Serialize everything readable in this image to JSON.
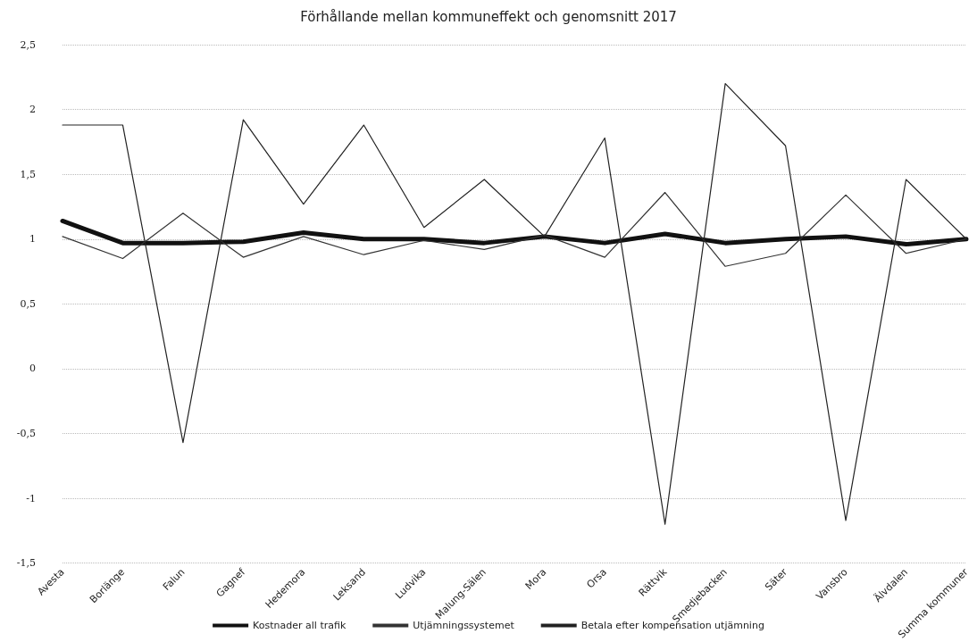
{
  "chart_data": {
    "type": "line",
    "title": "Förhållande mellan kommuneffekt och genomsnitt 2017",
    "categories": [
      "Avesta",
      "Borlänge",
      "Falun",
      "Gagnef",
      "Hedemora",
      "Leksand",
      "Ludvika",
      "Malung-Sälen",
      "Mora",
      "Orsa",
      "Rättvik",
      "Smedjebacken",
      "Säter",
      "Vansbro",
      "Älvdalen",
      "Summa kommuner"
    ],
    "series": [
      {
        "name": "Kostnader all trafik",
        "color": "#111111",
        "values": [
          1.14,
          0.97,
          0.97,
          0.98,
          1.05,
          1.0,
          1.0,
          0.97,
          1.02,
          0.97,
          1.04,
          0.97,
          1.0,
          1.02,
          0.96,
          1.0
        ]
      },
      {
        "name": "Utjämningssystemet",
        "color": "#333333",
        "values": [
          1.02,
          0.85,
          1.2,
          0.86,
          1.02,
          0.88,
          0.99,
          0.92,
          1.03,
          0.86,
          1.36,
          0.79,
          0.89,
          1.34,
          0.89,
          1.0
        ]
      },
      {
        "name": "Betala efter kompensation utjämning",
        "color": "#222222",
        "values": [
          1.88,
          1.88,
          -0.57,
          1.92,
          1.27,
          1.88,
          1.09,
          1.46,
          1.02,
          1.78,
          -1.2,
          2.2,
          1.72,
          -1.17,
          1.46,
          1.0
        ]
      }
    ],
    "ylim": [
      -1.5,
      2.5
    ],
    "yticks": [
      {
        "value": -1.5,
        "label": "-1,5"
      },
      {
        "value": -1,
        "label": "-1"
      },
      {
        "value": -0.5,
        "label": "-0,5"
      },
      {
        "value": 0,
        "label": "0"
      },
      {
        "value": 0.5,
        "label": "0,5"
      },
      {
        "value": 1,
        "label": "1"
      },
      {
        "value": 1.5,
        "label": "1,5"
      },
      {
        "value": 2,
        "label": "2"
      },
      {
        "value": 2.5,
        "label": "2,5"
      }
    ],
    "grid": "y",
    "legend": "bottom",
    "marker": "none",
    "line_style": "solid"
  }
}
